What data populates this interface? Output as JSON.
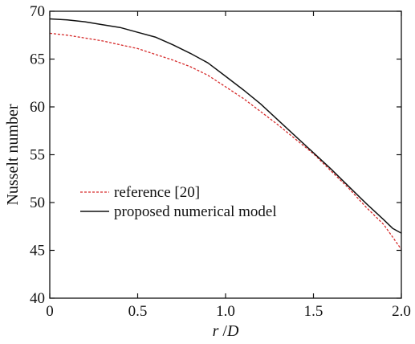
{
  "chart_data": {
    "type": "line",
    "xlabel_var": "r",
    "xlabel_sep": " /",
    "xlabel_den": "D",
    "ylabel": "Nusselt number",
    "xlim": [
      0,
      2.0
    ],
    "ylim": [
      40,
      70
    ],
    "xticks": [
      "0",
      "0.5",
      "1.0",
      "1.5",
      "2.0"
    ],
    "xtick_values": [
      0,
      0.5,
      1.0,
      1.5,
      2.0
    ],
    "yticks": [
      "40",
      "45",
      "50",
      "55",
      "60",
      "65",
      "70"
    ],
    "ytick_values": [
      40,
      45,
      50,
      55,
      60,
      65,
      70
    ],
    "grid": false,
    "legend_position": "lower-left",
    "series": [
      {
        "name": "reference [20]",
        "color": "#d62b2b",
        "style": "dashed",
        "x": [
          0,
          0.1,
          0.2,
          0.3,
          0.4,
          0.5,
          0.6,
          0.7,
          0.8,
          0.9,
          1.0,
          1.1,
          1.2,
          1.3,
          1.4,
          1.5,
          1.6,
          1.7,
          1.8,
          1.9,
          2.0
        ],
        "y": [
          67.7,
          67.5,
          67.2,
          66.9,
          66.5,
          66.1,
          65.5,
          64.9,
          64.2,
          63.3,
          62.1,
          60.9,
          59.5,
          58.1,
          56.6,
          55.1,
          53.3,
          51.5,
          49.5,
          47.7,
          45.1
        ]
      },
      {
        "name": "proposed numerical model",
        "color": "#111111",
        "style": "solid",
        "x": [
          0,
          0.1,
          0.2,
          0.3,
          0.4,
          0.5,
          0.6,
          0.7,
          0.8,
          0.9,
          1.0,
          1.1,
          1.2,
          1.3,
          1.4,
          1.5,
          1.6,
          1.7,
          1.8,
          1.9,
          1.95,
          2.0
        ],
        "y": [
          69.2,
          69.1,
          68.9,
          68.6,
          68.3,
          67.8,
          67.3,
          66.5,
          65.6,
          64.6,
          63.2,
          61.8,
          60.3,
          58.6,
          56.9,
          55.2,
          53.5,
          51.7,
          49.9,
          48.2,
          47.3,
          46.8
        ]
      }
    ]
  }
}
